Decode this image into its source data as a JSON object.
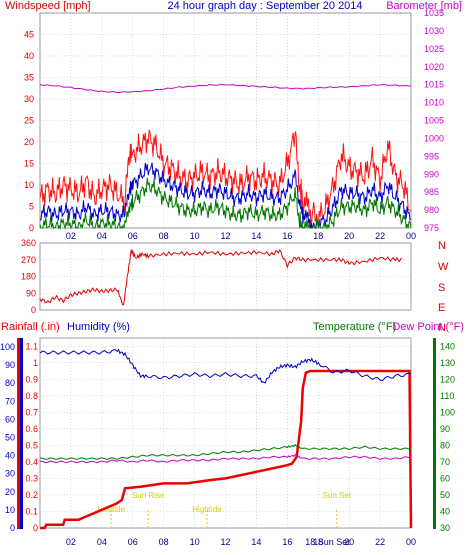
{
  "title": "24 hour graph day : September 20 2014",
  "colors": {
    "wind": "#dd0000",
    "gust": "#ff1111",
    "avg": "#0000cc",
    "low": "#007700",
    "baro": "#cc00cc",
    "dir": "#dd0000",
    "rain": "#ee0000",
    "hum": "#0000cc",
    "temp": "#007700",
    "dew": "#cc00cc",
    "sun": "#ddcc00",
    "grid": "#bbbbbb"
  },
  "x_ticks": [
    "02",
    "04",
    "06",
    "08",
    "10",
    "12",
    "14",
    "16",
    "18",
    "20",
    "22",
    "00"
  ],
  "x_ticks_bottom": [
    "02",
    "04",
    "06",
    "08",
    "10",
    "12",
    "14",
    "16",
    "18",
    "20",
    "22",
    "00"
  ],
  "panel1": {
    "left_title": "Windspeed [mph]",
    "right_title": "Barometer [mb]",
    "left_ticks": [
      "0",
      "5",
      "10",
      "15",
      "20",
      "25",
      "30",
      "35",
      "40",
      "45"
    ],
    "right_ticks": [
      "975",
      "980",
      "985",
      "990",
      "995",
      "1000",
      "1005",
      "1010",
      "1015",
      "1020",
      "1025",
      "1030",
      "1035"
    ]
  },
  "panel2": {
    "left_ticks": [
      "0",
      "90",
      "180",
      "270",
      "360"
    ],
    "right_labels": [
      "N",
      "W",
      "S",
      "E",
      "N"
    ]
  },
  "panel3": {
    "rain_title": "Rainfall (.in)",
    "hum_title": "Humidity (%)",
    "temp_title": "Temperature (°F)",
    "dew_title": "Dew Point (°F)",
    "rain_ticks": [
      "0",
      "0.1",
      "0.2",
      "0.3",
      "0.4",
      "0.5",
      "0.6",
      "0.7",
      "0.8",
      "0.9",
      "1",
      "1.1"
    ],
    "hum_ticks": [
      "0",
      "10",
      "20",
      "30",
      "40",
      "50",
      "60",
      "70",
      "80",
      "90",
      "100"
    ],
    "temp_ticks": [
      "30",
      "40",
      "50",
      "60",
      "70",
      "80",
      "90",
      "100",
      "110",
      "120",
      "130",
      "140"
    ],
    "events": [
      {
        "label": "Lowtide",
        "hour": 4.6
      },
      {
        "label": "Sun Rise",
        "hour": 7.0
      },
      {
        "label": "Hightide",
        "hour": 10.8
      },
      {
        "label": "Sun Set",
        "hour": 19.2
      }
    ],
    "overlay_labels": [
      {
        "label": "18 Sun Set",
        "hour": 18.6
      }
    ]
  },
  "chart_data": [
    {
      "type": "line",
      "title": "24 hour graph day : September 20 2014",
      "xlabel": "",
      "ylabel": "Windspeed [mph]",
      "y2label": "Barometer [mb]",
      "x_range_hours": [
        0,
        24
      ],
      "ylim": [
        0,
        50
      ],
      "y2lim": [
        975,
        1035
      ],
      "series": [
        {
          "name": "gust",
          "axis": "left",
          "x": [
            0,
            0.5,
            1,
            1.5,
            2,
            2.5,
            3,
            3.5,
            4,
            4.5,
            5,
            5.5,
            5.8,
            6,
            6.5,
            7,
            7.5,
            8,
            8.5,
            9,
            9.5,
            10,
            10.5,
            11,
            11.5,
            12,
            12.5,
            13,
            13.5,
            14,
            14.5,
            15,
            15.5,
            16,
            16.5,
            16.8,
            17,
            17.3,
            17.6,
            18,
            18.5,
            19,
            19.5,
            20,
            20.5,
            21,
            21.5,
            22,
            22.5,
            23,
            23.5,
            24
          ],
          "values": [
            7,
            9,
            8,
            10,
            9,
            8,
            11,
            7,
            9,
            10,
            8,
            6,
            18,
            17,
            19,
            21,
            19,
            15,
            14,
            12,
            11,
            12,
            13,
            12,
            13,
            12,
            11,
            10,
            12,
            11,
            12,
            11,
            10,
            15,
            22,
            10,
            6,
            5,
            3,
            2,
            5,
            10,
            17,
            14,
            13,
            12,
            16,
            11,
            19,
            12,
            10,
            4
          ]
        },
        {
          "name": "avg",
          "axis": "left",
          "x": [
            0,
            0.5,
            1,
            1.5,
            2,
            2.5,
            3,
            3.5,
            4,
            4.5,
            5,
            5.5,
            5.8,
            6,
            6.5,
            7,
            7.5,
            8,
            8.5,
            9,
            9.5,
            10,
            10.5,
            11,
            11.5,
            12,
            12.5,
            13,
            13.5,
            14,
            14.5,
            15,
            15.5,
            16,
            16.5,
            16.8,
            17,
            17.3,
            17.6,
            18,
            18.5,
            19,
            19.5,
            20,
            20.5,
            21,
            21.5,
            22,
            22.5,
            23,
            23.5,
            24
          ],
          "values": [
            3,
            4,
            3,
            4,
            4,
            3,
            5,
            3,
            4,
            4,
            3,
            3,
            9,
            10,
            12,
            14,
            13,
            11,
            10,
            9,
            8,
            8,
            9,
            8,
            9,
            8,
            7,
            7,
            8,
            7,
            8,
            7,
            7,
            9,
            12,
            6,
            3,
            2,
            1,
            1,
            2,
            5,
            9,
            8,
            8,
            7,
            9,
            7,
            10,
            7,
            5,
            2
          ]
        },
        {
          "name": "low",
          "axis": "left",
          "x": [
            0,
            0.5,
            1,
            1.5,
            2,
            2.5,
            3,
            3.5,
            4,
            4.5,
            5,
            5.5,
            5.8,
            6,
            6.5,
            7,
            7.5,
            8,
            8.5,
            9,
            9.5,
            10,
            10.5,
            11,
            11.5,
            12,
            12.5,
            13,
            13.5,
            14,
            14.5,
            15,
            15.5,
            16,
            16.5,
            16.8,
            17,
            17.3,
            17.6,
            18,
            18.5,
            19,
            19.5,
            20,
            20.5,
            21,
            21.5,
            22,
            22.5,
            23,
            23.5,
            24
          ],
          "values": [
            0,
            1,
            0,
            1,
            1,
            0,
            2,
            0,
            1,
            1,
            0,
            0,
            5,
            6,
            8,
            10,
            9,
            7,
            6,
            5,
            4,
            4,
            5,
            4,
            5,
            4,
            3,
            3,
            4,
            3,
            4,
            3,
            3,
            5,
            8,
            2,
            0,
            0,
            0,
            0,
            0,
            2,
            5,
            5,
            5,
            4,
            6,
            4,
            6,
            4,
            2,
            0
          ]
        },
        {
          "name": "barometer",
          "axis": "right",
          "x": [
            0,
            1,
            2,
            3,
            4,
            5,
            6,
            7,
            8,
            9,
            10,
            11,
            12,
            13,
            14,
            15,
            16,
            17,
            18,
            19,
            20,
            21,
            22,
            23,
            24
          ],
          "values": [
            1015.0,
            1014.7,
            1014.2,
            1013.6,
            1013.1,
            1012.9,
            1013.0,
            1013.3,
            1013.8,
            1014.3,
            1014.6,
            1014.9,
            1015.0,
            1014.8,
            1014.5,
            1014.3,
            1014.0,
            1013.9,
            1014.1,
            1014.3,
            1014.4,
            1014.7,
            1015.0,
            1014.8,
            1014.6
          ]
        }
      ]
    },
    {
      "type": "line",
      "xlabel": "",
      "ylabel": "",
      "x_range_hours": [
        0,
        24
      ],
      "ylim": [
        0,
        360
      ],
      "series": [
        {
          "name": "direction",
          "x": [
            0,
            0.5,
            1,
            1.5,
            2,
            2.5,
            3,
            3.5,
            4,
            4.5,
            5,
            5.4,
            5.6,
            5.9,
            6.2,
            6.6,
            7,
            8,
            9,
            10,
            11,
            12,
            13,
            14,
            15,
            15.5,
            16,
            16.5,
            17,
            18,
            19,
            19.5,
            20,
            21,
            22,
            23,
            23.5
          ],
          "values": [
            60,
            40,
            70,
            50,
            80,
            90,
            100,
            110,
            100,
            105,
            110,
            20,
            150,
            320,
            280,
            300,
            290,
            300,
            305,
            300,
            310,
            300,
            305,
            310,
            300,
            320,
            240,
            280,
            270,
            270,
            270,
            270,
            250,
            260,
            280,
            270,
            270
          ]
        }
      ]
    },
    {
      "type": "line",
      "xlabel": "",
      "ylabel": "Rainfall (.in)",
      "x_range_hours": [
        0,
        24
      ],
      "ylim_rain": [
        0,
        1.15
      ],
      "ylim_humidity": [
        0,
        105
      ],
      "ylim_temperature": [
        30,
        145
      ],
      "series": [
        {
          "name": "rainfall",
          "axis": "rain",
          "x": [
            0,
            0.3,
            0.4,
            1.5,
            1.6,
            2.5,
            3,
            3.5,
            4,
            4.5,
            5,
            5.3,
            5.5,
            6.5,
            8,
            9.5,
            11,
            12,
            13,
            14,
            15,
            16,
            16.3,
            16.6,
            16.9,
            17,
            17.2,
            17.5,
            18,
            19,
            20,
            21,
            22,
            23,
            23.9,
            24
          ],
          "values": [
            0.0,
            0.0,
            0.02,
            0.02,
            0.05,
            0.05,
            0.07,
            0.09,
            0.11,
            0.13,
            0.15,
            0.17,
            0.24,
            0.25,
            0.27,
            0.27,
            0.29,
            0.3,
            0.32,
            0.34,
            0.36,
            0.38,
            0.39,
            0.43,
            0.65,
            0.85,
            0.94,
            0.95,
            0.95,
            0.95,
            0.95,
            0.95,
            0.95,
            0.95,
            0.95,
            0.0
          ]
        },
        {
          "name": "humidity",
          "axis": "humidity",
          "x": [
            0,
            1,
            2,
            3,
            4,
            5,
            5.5,
            6,
            6.5,
            7,
            8,
            9,
            10,
            11,
            12,
            13,
            14,
            14.5,
            15,
            15.5,
            16,
            16.5,
            17,
            17.5,
            18,
            19,
            20,
            21,
            22,
            23,
            24
          ],
          "values": [
            97,
            97,
            97,
            97,
            97,
            98,
            96,
            90,
            84,
            84,
            83,
            84,
            85,
            84,
            85,
            84,
            84,
            80,
            86,
            89,
            90,
            89,
            92,
            93,
            91,
            86,
            87,
            84,
            82,
            84,
            85
          ]
        },
        {
          "name": "temperature",
          "axis": "temperature",
          "x": [
            0,
            1,
            2,
            3,
            4,
            5,
            6,
            7,
            8,
            9,
            10,
            11,
            12,
            13,
            14,
            15,
            16,
            16.5,
            17,
            18,
            19,
            20,
            21,
            22,
            23,
            24
          ],
          "values": [
            72,
            72,
            72,
            72,
            72,
            72,
            73,
            74,
            74,
            74,
            74,
            75,
            76,
            76,
            77,
            78,
            79,
            80,
            78,
            78,
            78,
            78,
            79,
            78,
            78,
            78
          ]
        },
        {
          "name": "dew point",
          "axis": "temperature",
          "x": [
            0,
            1,
            2,
            3,
            4,
            5,
            6,
            7,
            8,
            9,
            10,
            11,
            12,
            13,
            14,
            15,
            16,
            16.5,
            17,
            18,
            19,
            20,
            21,
            22,
            23,
            24
          ],
          "values": [
            70,
            70,
            70,
            70,
            70,
            71,
            70,
            71,
            70,
            71,
            71,
            71,
            72,
            72,
            72,
            73,
            73,
            74,
            72,
            72,
            72,
            73,
            73,
            72,
            72,
            73
          ]
        }
      ]
    }
  ]
}
